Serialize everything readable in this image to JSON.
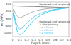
{
  "chart_data": {
    "type": "line",
    "xlabel": "Depth (mm)",
    "ylabel": "σr (MPa)",
    "xlim": [
      0,
      0.8
    ],
    "ylim": [
      -1100,
      -150
    ],
    "xticks": [
      0,
      0.1,
      0.2,
      0.3,
      0.4,
      0.5,
      0.6,
      0.7,
      0.8
    ],
    "yticks": [
      -200,
      -400,
      -600,
      -800,
      -1000
    ],
    "grid": false,
    "series": [
      {
        "color": "#666666",
        "x": [
          0.0,
          0.05,
          0.1,
          0.15,
          0.2,
          0.3,
          0.4,
          0.5,
          0.6,
          0.7,
          0.8
        ],
        "values": [
          -250,
          -258,
          -262,
          -265,
          -268,
          -272,
          -278,
          -285,
          -292,
          -298,
          -305
        ]
      },
      {
        "color": "#999999",
        "x": [
          0.0,
          0.02,
          0.04,
          0.06,
          0.08,
          0.1,
          0.12,
          0.15,
          0.2,
          0.25,
          0.3,
          0.4,
          0.5,
          0.6,
          0.7,
          0.8
        ],
        "values": [
          -310,
          -390,
          -470,
          -530,
          -570,
          -580,
          -570,
          -545,
          -490,
          -445,
          -405,
          -358,
          -332,
          -318,
          -308,
          -300
        ]
      },
      {
        "color": "#55bbdd",
        "x": [
          0.0,
          0.02,
          0.04,
          0.06,
          0.08,
          0.1,
          0.13,
          0.16,
          0.2,
          0.25,
          0.3,
          0.4,
          0.5,
          0.6,
          0.7,
          0.8
        ],
        "values": [
          -350,
          -500,
          -650,
          -790,
          -860,
          -890,
          -870,
          -820,
          -730,
          -640,
          -560,
          -455,
          -390,
          -350,
          -322,
          -305
        ]
      },
      {
        "color": "#00ccff",
        "x": [
          0.0,
          0.02,
          0.04,
          0.06,
          0.08,
          0.1,
          0.13,
          0.16,
          0.2,
          0.25,
          0.3,
          0.4,
          0.5,
          0.6,
          0.7,
          0.8
        ],
        "values": [
          -380,
          -560,
          -750,
          -930,
          -1020,
          -1050,
          -1030,
          -975,
          -870,
          -750,
          -650,
          -510,
          -420,
          -368,
          -335,
          -312
        ]
      }
    ],
    "annotations": [
      {
        "text": "Hardened and tempered",
        "color": "#444444"
      },
      {
        "text": "Hardened and tempered",
        "color": "#444444"
      },
      {
        "text": "+ shot peening",
        "color": "#444444"
      },
      {
        "text": "v = 23 m/s",
        "color": "#999999"
      },
      {
        "text": "v = 46 m/s",
        "color": "#55bbdd"
      },
      {
        "text": "v = 68 m/s",
        "color": "#00ccff"
      }
    ]
  }
}
